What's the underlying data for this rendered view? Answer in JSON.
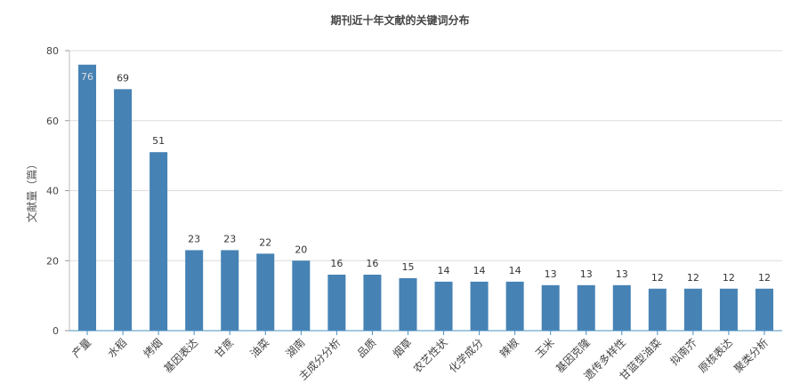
{
  "chart_data": {
    "type": "bar",
    "title": "期刊近十年文献的关键词分布",
    "xlabel": "",
    "ylabel": "文献量（篇）",
    "ylim": [
      0,
      80
    ],
    "yticks": [
      0,
      20,
      40,
      60,
      80
    ],
    "grid": true,
    "categories": [
      "产量",
      "水稻",
      "烤烟",
      "基因表达",
      "甘蔗",
      "油菜",
      "湖南",
      "主成分分析",
      "品质",
      "烟草",
      "农艺性状",
      "化学成分",
      "辣椒",
      "玉米",
      "基因克隆",
      "遗传多样性",
      "甘蓝型油菜",
      "拟南芥",
      "原核表达",
      "聚类分析"
    ],
    "values": [
      76,
      69,
      51,
      23,
      23,
      22,
      20,
      16,
      16,
      15,
      14,
      14,
      14,
      13,
      13,
      13,
      12,
      12,
      12,
      12
    ],
    "bar_color": "#4682b4",
    "axis_color": "#4a90c2"
  }
}
